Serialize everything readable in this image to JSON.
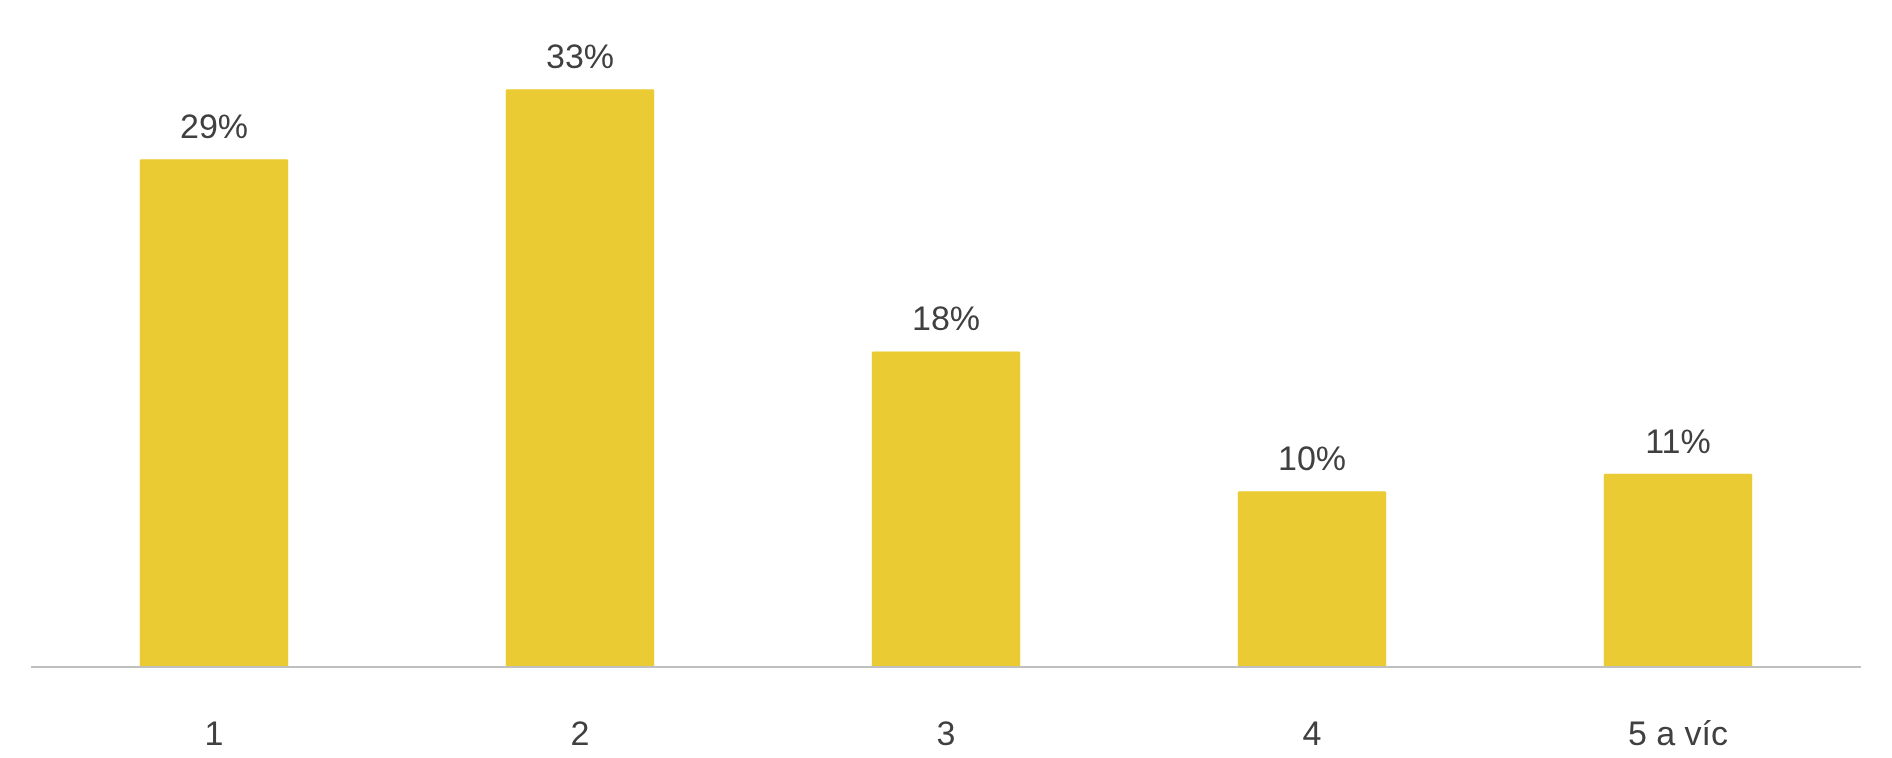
{
  "chart_data": {
    "type": "bar",
    "categories": [
      "1",
      "2",
      "3",
      "4",
      "5 a víc"
    ],
    "values": [
      29,
      33,
      18,
      10,
      11
    ],
    "color": "#ebcb34",
    "value_labels": [
      "29%",
      "33%",
      "18%",
      "10%",
      "11%"
    ],
    "grid": false
  }
}
